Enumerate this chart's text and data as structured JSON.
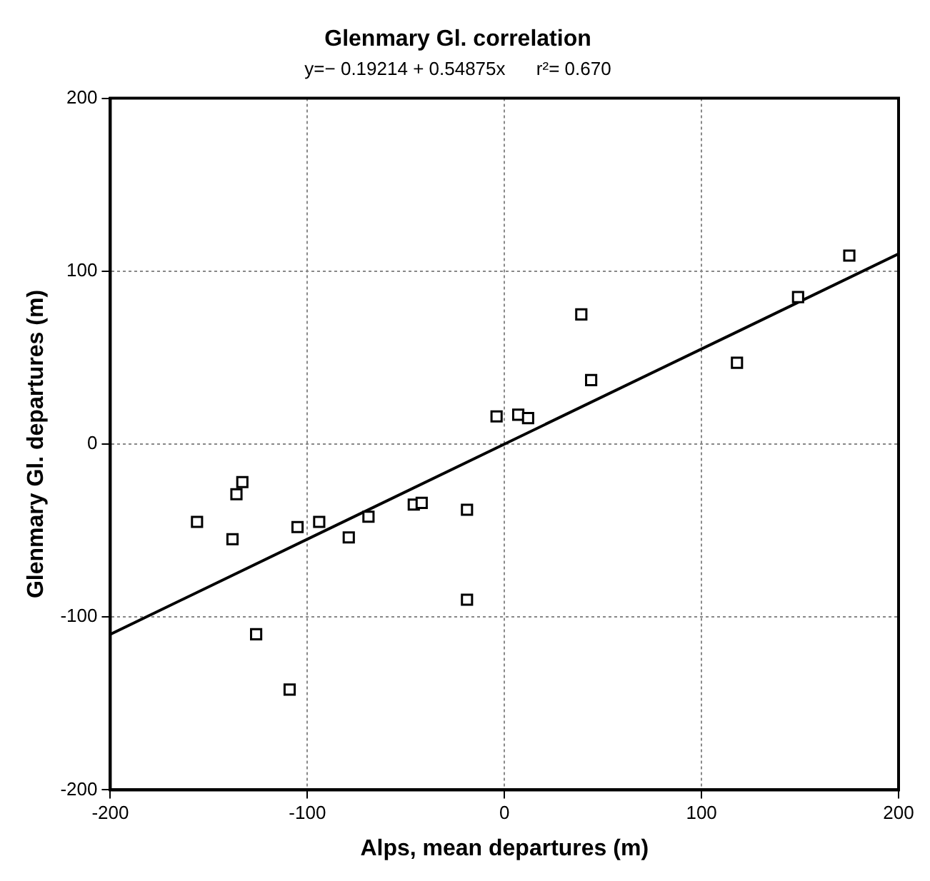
{
  "chart_data": {
    "type": "scatter",
    "title": "Glenmary Gl. correlation",
    "subtitle": "y=− 0.19214 + 0.54875x      r²= 0.670",
    "xlabel": "Alps, mean departures (m)",
    "ylabel": "Glenmary Gl. departures (m)",
    "series": [
      {
        "color": "#000000",
        "marker": "square",
        "x": [
          -156,
          -136,
          -133,
          -138,
          -126,
          -109,
          -105,
          -94,
          -79,
          -69,
          -46,
          -42,
          -19,
          -19,
          -4,
          7,
          12,
          39,
          44,
          118,
          149,
          175
        ],
        "values": [
          -45,
          -29,
          -22,
          -55,
          -110,
          -142,
          -48,
          -45,
          -54,
          -42,
          -35,
          -34,
          -38,
          -90,
          16,
          17,
          15,
          75,
          37,
          47,
          85,
          109
        ]
      },
      {
        "type": "line",
        "color": "#000000",
        "marker": "none",
        "line_style": "solid",
        "x": [
          -200,
          200
        ],
        "values": [
          -110,
          110
        ]
      }
    ],
    "xlim": [
      -200,
      200
    ],
    "ylim": [
      -200,
      200
    ],
    "xticks": [
      -200,
      -100,
      0,
      100,
      200
    ],
    "yticks": [
      -200,
      -100,
      0,
      100,
      200
    ],
    "grid": true,
    "legend": false
  }
}
